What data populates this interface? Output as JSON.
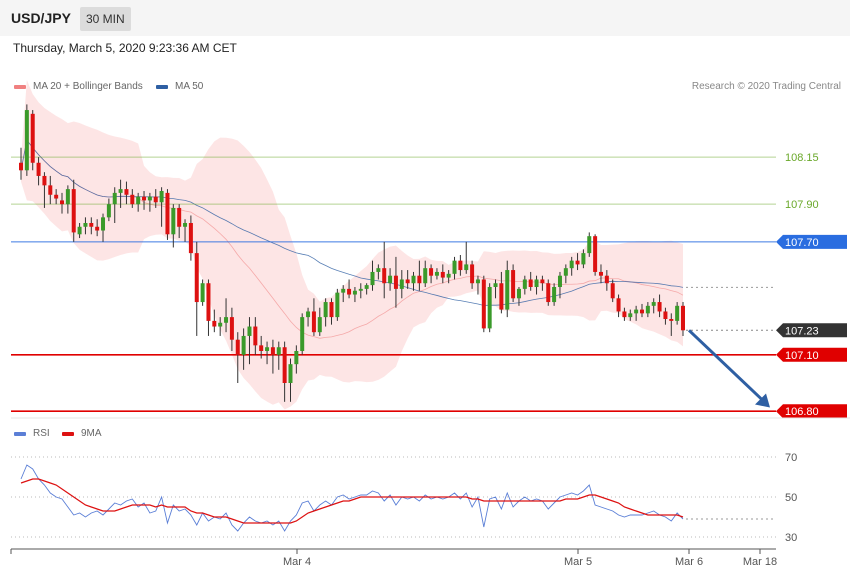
{
  "header": {
    "pair": "USD/JPY",
    "timeframe": "30 MIN"
  },
  "timestamp": "Thursday, March 5, 2020 9:23:36 AM CET",
  "legend": [
    {
      "label": "MA 20 + Bollinger Bands",
      "color": "#f08080"
    },
    {
      "label": "MA 50",
      "color": "#2e5fa3"
    }
  ],
  "copyright": "Research © 2020 Trading Central",
  "rsi_legend": [
    {
      "label": "RSI",
      "color": "#5b7fd6"
    },
    {
      "label": "9MA",
      "color": "#dd1111"
    }
  ],
  "chart_data": [
    {
      "type": "candlestick",
      "ylim": [
        106.78,
        108.48
      ],
      "x_labels": [
        "Mar 4",
        "Mar 5",
        "Mar 6",
        "Mar 18"
      ],
      "levels": [
        {
          "value": 108.15,
          "label": "108.15",
          "color": "#6aa82a",
          "style": "resistance"
        },
        {
          "value": 107.9,
          "label": "107.90",
          "color": "#6aa82a",
          "style": "resistance"
        },
        {
          "value": 107.7,
          "label": "107.70",
          "color": "#2a6de0",
          "style": "pivot"
        },
        {
          "value": 107.23,
          "label": "107.23",
          "color": "#333333",
          "style": "current"
        },
        {
          "value": 107.1,
          "label": "107.10",
          "color": "#e00000",
          "style": "support"
        },
        {
          "value": 106.8,
          "label": "106.80",
          "color": "#e00000",
          "style": "support"
        }
      ],
      "forecast_arrow": {
        "from_value": 107.23,
        "to_value": 106.82,
        "color": "#2e5fa3"
      },
      "candles": [
        [
          108.12,
          108.2,
          108.03,
          108.08
        ],
        [
          108.08,
          108.43,
          108.05,
          108.4
        ],
        [
          108.38,
          108.4,
          108.08,
          108.12
        ],
        [
          108.12,
          108.15,
          108.0,
          108.05
        ],
        [
          108.05,
          108.07,
          107.88,
          108.0
        ],
        [
          108.0,
          108.05,
          107.9,
          107.95
        ],
        [
          107.95,
          107.98,
          107.9,
          107.93
        ],
        [
          107.92,
          107.96,
          107.85,
          107.9
        ],
        [
          107.9,
          108.0,
          107.85,
          107.98
        ],
        [
          107.98,
          108.03,
          107.7,
          107.75
        ],
        [
          107.74,
          107.8,
          107.72,
          107.78
        ],
        [
          107.78,
          107.83,
          107.74,
          107.8
        ],
        [
          107.8,
          107.83,
          107.74,
          107.78
        ],
        [
          107.78,
          107.82,
          107.73,
          107.76
        ],
        [
          107.76,
          107.85,
          107.7,
          107.83
        ],
        [
          107.83,
          107.93,
          107.81,
          107.9
        ],
        [
          107.9,
          107.99,
          107.8,
          107.96
        ],
        [
          107.96,
          108.03,
          107.88,
          107.98
        ],
        [
          107.98,
          108.02,
          107.9,
          107.95
        ],
        [
          107.95,
          107.98,
          107.88,
          107.9
        ],
        [
          107.9,
          107.96,
          107.86,
          107.94
        ],
        [
          107.94,
          107.97,
          107.87,
          107.92
        ],
        [
          107.92,
          107.96,
          107.86,
          107.94
        ],
        [
          107.94,
          107.98,
          107.88,
          107.91
        ],
        [
          107.91,
          107.99,
          107.78,
          107.97
        ],
        [
          107.96,
          107.98,
          107.71,
          107.74
        ],
        [
          107.74,
          107.9,
          107.67,
          107.88
        ],
        [
          107.88,
          107.9,
          107.72,
          107.78
        ],
        [
          107.78,
          107.82,
          107.7,
          107.8
        ],
        [
          107.8,
          107.84,
          107.6,
          107.64
        ],
        [
          107.64,
          107.7,
          107.2,
          107.38
        ],
        [
          107.38,
          107.5,
          107.36,
          107.48
        ],
        [
          107.48,
          107.5,
          107.2,
          107.28
        ],
        [
          107.28,
          107.34,
          107.22,
          107.25
        ],
        [
          107.25,
          107.3,
          107.2,
          107.27
        ],
        [
          107.27,
          107.4,
          107.22,
          107.3
        ],
        [
          107.3,
          107.35,
          107.12,
          107.18
        ],
        [
          107.18,
          107.22,
          106.95,
          107.1
        ],
        [
          107.1,
          107.24,
          107.02,
          107.2
        ],
        [
          107.2,
          107.3,
          107.05,
          107.25
        ],
        [
          107.25,
          107.3,
          107.1,
          107.15
        ],
        [
          107.15,
          107.2,
          107.08,
          107.12
        ],
        [
          107.12,
          107.17,
          107.05,
          107.14
        ],
        [
          107.14,
          107.18,
          107.0,
          107.1
        ],
        [
          107.1,
          107.17,
          107.02,
          107.14
        ],
        [
          107.14,
          107.17,
          106.85,
          106.95
        ],
        [
          106.95,
          107.08,
          106.85,
          107.05
        ],
        [
          107.05,
          107.15,
          107.0,
          107.12
        ],
        [
          107.12,
          107.32,
          107.1,
          107.3
        ],
        [
          107.3,
          107.35,
          107.25,
          107.33
        ],
        [
          107.33,
          107.4,
          107.2,
          107.22
        ],
        [
          107.22,
          107.35,
          107.2,
          107.3
        ],
        [
          107.3,
          107.4,
          107.25,
          107.38
        ],
        [
          107.38,
          107.4,
          107.26,
          107.3
        ],
        [
          107.3,
          107.45,
          107.28,
          107.43
        ],
        [
          107.43,
          107.47,
          107.38,
          107.45
        ],
        [
          107.45,
          107.5,
          107.4,
          107.42
        ],
        [
          107.42,
          107.46,
          107.38,
          107.44
        ],
        [
          107.44,
          107.48,
          107.4,
          107.45
        ],
        [
          107.45,
          107.48,
          107.42,
          107.47
        ],
        [
          107.47,
          107.6,
          107.44,
          107.54
        ],
        [
          107.54,
          107.58,
          107.5,
          107.56
        ],
        [
          107.56,
          107.7,
          107.4,
          107.48
        ],
        [
          107.48,
          107.56,
          107.44,
          107.52
        ],
        [
          107.52,
          107.62,
          107.35,
          107.45
        ],
        [
          107.45,
          107.55,
          107.4,
          107.5
        ],
        [
          107.5,
          107.55,
          107.45,
          107.48
        ],
        [
          107.48,
          107.54,
          107.44,
          107.52
        ],
        [
          107.52,
          107.6,
          107.44,
          107.48
        ],
        [
          107.48,
          107.6,
          107.46,
          107.56
        ],
        [
          107.56,
          107.58,
          107.48,
          107.52
        ],
        [
          107.52,
          107.56,
          107.5,
          107.54
        ],
        [
          107.54,
          107.58,
          107.48,
          107.51
        ],
        [
          107.51,
          107.55,
          107.48,
          107.53
        ],
        [
          107.53,
          107.62,
          107.5,
          107.6
        ],
        [
          107.6,
          107.63,
          107.52,
          107.55
        ],
        [
          107.55,
          107.7,
          107.53,
          107.58
        ],
        [
          107.58,
          107.6,
          107.45,
          107.48
        ],
        [
          107.48,
          107.52,
          107.42,
          107.5
        ],
        [
          107.5,
          107.52,
          107.22,
          107.24
        ],
        [
          107.24,
          107.48,
          107.22,
          107.46
        ],
        [
          107.46,
          107.5,
          107.4,
          107.48
        ],
        [
          107.48,
          107.54,
          107.32,
          107.34
        ],
        [
          107.34,
          107.6,
          107.3,
          107.55
        ],
        [
          107.55,
          107.58,
          107.38,
          107.4
        ],
        [
          107.4,
          107.46,
          107.36,
          107.45
        ],
        [
          107.45,
          107.52,
          107.42,
          107.5
        ],
        [
          107.5,
          107.54,
          107.44,
          107.46
        ],
        [
          107.46,
          107.52,
          107.42,
          107.5
        ],
        [
          107.5,
          107.52,
          107.44,
          107.48
        ],
        [
          107.48,
          107.5,
          107.36,
          107.38
        ],
        [
          107.38,
          107.48,
          107.36,
          107.46
        ],
        [
          107.46,
          107.54,
          107.4,
          107.52
        ],
        [
          107.52,
          107.58,
          107.48,
          107.56
        ],
        [
          107.56,
          107.62,
          107.52,
          107.6
        ],
        [
          107.6,
          107.64,
          107.55,
          107.58
        ],
        [
          107.58,
          107.66,
          107.56,
          107.64
        ],
        [
          107.64,
          107.75,
          107.62,
          107.73
        ],
        [
          107.73,
          107.74,
          107.52,
          107.54
        ],
        [
          107.54,
          107.58,
          107.48,
          107.52
        ],
        [
          107.52,
          107.55,
          107.44,
          107.48
        ],
        [
          107.48,
          107.5,
          107.38,
          107.4
        ],
        [
          107.4,
          107.42,
          107.3,
          107.33
        ],
        [
          107.33,
          107.35,
          107.28,
          107.3
        ],
        [
          107.3,
          107.34,
          107.28,
          107.32
        ],
        [
          107.32,
          107.36,
          107.28,
          107.34
        ],
        [
          107.34,
          107.37,
          107.3,
          107.32
        ],
        [
          107.32,
          107.38,
          107.3,
          107.36
        ],
        [
          107.36,
          107.4,
          107.32,
          107.38
        ],
        [
          107.38,
          107.42,
          107.3,
          107.33
        ],
        [
          107.33,
          107.35,
          107.26,
          107.29
        ],
        [
          107.29,
          107.32,
          107.2,
          107.28
        ],
        [
          107.28,
          107.38,
          107.26,
          107.36
        ],
        [
          107.36,
          107.38,
          107.2,
          107.23
        ]
      ]
    },
    {
      "type": "line",
      "name": "RSI",
      "ylim": [
        26,
        76
      ],
      "y_ticks": [
        70,
        50,
        30
      ],
      "series": [
        {
          "name": "RSI",
          "color": "#5b7fd6",
          "values": [
            59,
            66,
            64,
            59,
            56,
            52,
            50,
            49,
            45,
            41,
            42,
            40,
            42,
            43,
            41,
            44,
            47,
            46,
            48,
            49,
            45,
            47,
            42,
            43,
            50,
            37,
            46,
            43,
            44,
            41,
            36,
            42,
            38,
            40,
            39,
            42,
            36,
            33,
            37,
            40,
            38,
            37,
            38,
            36,
            38,
            33,
            38,
            41,
            47,
            48,
            43,
            46,
            48,
            46,
            50,
            51,
            49,
            50,
            51,
            51,
            53,
            52,
            48,
            51,
            46,
            50,
            49,
            50,
            48,
            51,
            49,
            50,
            49,
            50,
            52,
            49,
            52,
            45,
            50,
            35,
            49,
            50,
            44,
            52,
            45,
            48,
            50,
            48,
            49,
            48,
            44,
            47,
            50,
            51,
            52,
            51,
            53,
            56,
            46,
            45,
            44,
            43,
            41,
            40,
            41,
            41,
            41,
            42,
            43,
            41,
            40,
            38,
            42,
            39
          ]
        },
        {
          "name": "9MA",
          "color": "#dd1111",
          "values": [
            57,
            58,
            59,
            59,
            58,
            57,
            56,
            54,
            52,
            50,
            48,
            46,
            45,
            44,
            43,
            43,
            43,
            44,
            45,
            46,
            46,
            46,
            46,
            45,
            46,
            45,
            45,
            45,
            45,
            43,
            42,
            42,
            41,
            40,
            40,
            40,
            39,
            38,
            37,
            37,
            37,
            37,
            37,
            37,
            37,
            37,
            37,
            38,
            40,
            42,
            43,
            44,
            45,
            46,
            47,
            48,
            48,
            49,
            50,
            50,
            50,
            50,
            50,
            50,
            50,
            50,
            50,
            50,
            50,
            50,
            50,
            50,
            50,
            50,
            50,
            50,
            50,
            49,
            49,
            48,
            48,
            48,
            48,
            48,
            48,
            48,
            48,
            48,
            48,
            48,
            48,
            48,
            48,
            49,
            49,
            49,
            50,
            51,
            51,
            50,
            49,
            48,
            47,
            45,
            44,
            43,
            42,
            41,
            41,
            41,
            41,
            41,
            41,
            40
          ]
        }
      ]
    }
  ]
}
